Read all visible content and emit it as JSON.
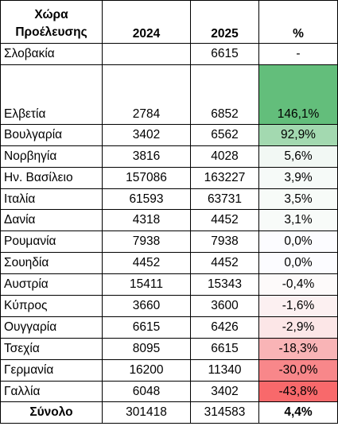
{
  "header": {
    "country_line1": "Χώρα",
    "country_line2": "Προέλευσης",
    "y2024": "2024",
    "y2025": "2025",
    "pct": "%"
  },
  "rows": [
    {
      "country": "Σλοβακία",
      "v2024": "",
      "v2025": "6615",
      "pct": "-",
      "color": "#ffffff"
    },
    {
      "country": "Ελβετία",
      "v2024": "2784",
      "v2025": "6852",
      "pct": "146,1%",
      "color": "#63be7b"
    },
    {
      "country": "Βουλγαρία",
      "v2024": "3402",
      "v2025": "6562",
      "pct": "92,9%",
      "color": "#a3d9b0"
    },
    {
      "country": "Νορβηγία",
      "v2024": "3816",
      "v2025": "4028",
      "pct": "5,6%",
      "color": "#f2f8f4"
    },
    {
      "country": "Ην. Βασίλειο",
      "v2024": "157086",
      "v2025": "163227",
      "pct": "3,9%",
      "color": "#f6faf8"
    },
    {
      "country": "Ιταλία",
      "v2024": "61593",
      "v2025": "63731",
      "pct": "3,5%",
      "color": "#f7fbf8"
    },
    {
      "country": "Δανία",
      "v2024": "4318",
      "v2025": "4452",
      "pct": "3,1%",
      "color": "#f8fbf9"
    },
    {
      "country": "Ρουμανία",
      "v2024": "7938",
      "v2025": "7938",
      "pct": "0,0%",
      "color": "#fcfcff"
    },
    {
      "country": "Σουηδία",
      "v2024": "4452",
      "v2025": "4452",
      "pct": "0,0%",
      "color": "#fcfcff"
    },
    {
      "country": "Αυστρία",
      "v2024": "15411",
      "v2025": "15343",
      "pct": "-0,4%",
      "color": "#fdfafa"
    },
    {
      "country": "Κύπρος",
      "v2024": "3660",
      "v2025": "3600",
      "pct": "-1,6%",
      "color": "#fcf0f1"
    },
    {
      "country": "Ουγγαρία",
      "v2024": "6615",
      "v2025": "6426",
      "pct": "-2,9%",
      "color": "#fce6e7"
    },
    {
      "country": "Τσεχία",
      "v2024": "8095",
      "v2025": "6615",
      "pct": "-18,3%",
      "color": "#f9b4b6"
    },
    {
      "country": "Γερμανία",
      "v2024": "16200",
      "v2025": "11340",
      "pct": "-30,0%",
      "color": "#f8878a"
    },
    {
      "country": "Γαλλία",
      "v2024": "6048",
      "v2025": "3402",
      "pct": "-43,8%",
      "color": "#f8696b"
    }
  ],
  "total": {
    "label": "Σύνολο",
    "v2024": "301418",
    "v2025": "314583",
    "pct": "4,4%"
  }
}
